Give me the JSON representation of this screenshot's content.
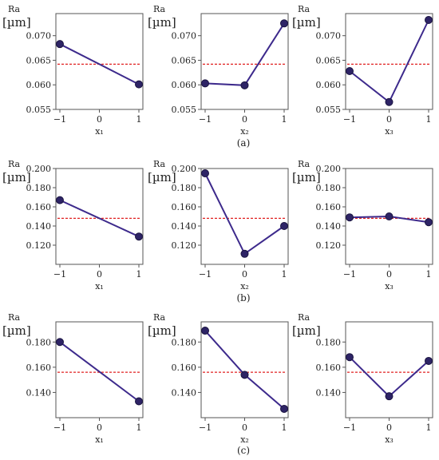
{
  "chart_data": [
    {
      "type": "line",
      "group": 0,
      "ylabel": "Ra",
      "yunit": "[µm]",
      "xlabel": "x₁",
      "x": [
        -1,
        1
      ],
      "y": [
        0.0683,
        0.0601
      ],
      "mean": 0.0642,
      "ylim": [
        0.055,
        0.0745
      ],
      "yticks": [
        0.055,
        0.06,
        0.065,
        0.07
      ],
      "ytick_labels": [
        "0.055",
        "0.060",
        "0.065",
        "0.070"
      ],
      "xticks": [
        -1,
        0,
        1
      ],
      "xtick_labels": [
        "−1",
        "0",
        "1"
      ]
    },
    {
      "type": "line",
      "group": 0,
      "ylabel": "Ra",
      "yunit": "[µm]",
      "xlabel": "x₂",
      "x": [
        -1,
        0,
        1
      ],
      "y": [
        0.0603,
        0.0599,
        0.0725
      ],
      "mean": 0.0642,
      "ylim": [
        0.055,
        0.0745
      ],
      "yticks": [
        0.055,
        0.06,
        0.065,
        0.07
      ],
      "ytick_labels": [
        "0.055",
        "0.060",
        "0.065",
        "0.070"
      ],
      "xticks": [
        -1,
        0,
        1
      ],
      "xtick_labels": [
        "−1",
        "0",
        "1"
      ]
    },
    {
      "type": "line",
      "group": 0,
      "ylabel": "Ra",
      "yunit": "[µm]",
      "xlabel": "x₃",
      "x": [
        -1,
        0,
        1
      ],
      "y": [
        0.0628,
        0.0565,
        0.0732
      ],
      "mean": 0.0642,
      "ylim": [
        0.055,
        0.0745
      ],
      "yticks": [
        0.055,
        0.06,
        0.065,
        0.07
      ],
      "ytick_labels": [
        "0.055",
        "0.060",
        "0.065",
        "0.070"
      ],
      "xticks": [
        -1,
        0,
        1
      ],
      "xtick_labels": [
        "−1",
        "0",
        "1"
      ]
    },
    {
      "type": "line",
      "group": 1,
      "ylabel": "Ra",
      "yunit": "[µm]",
      "xlabel": "x₁",
      "x": [
        -1,
        1
      ],
      "y": [
        0.167,
        0.129
      ],
      "mean": 0.148,
      "ylim": [
        0.1,
        0.2
      ],
      "yticks": [
        0.12,
        0.14,
        0.16,
        0.18,
        0.2
      ],
      "ytick_labels": [
        "0.120",
        "0.140",
        "0.160",
        "0.180",
        "0.200"
      ],
      "xticks": [
        -1,
        0,
        1
      ],
      "xtick_labels": [
        "−1",
        "0",
        "1"
      ]
    },
    {
      "type": "line",
      "group": 1,
      "ylabel": "Ra",
      "yunit": "[µm]",
      "xlabel": "x₂",
      "x": [
        -1,
        0,
        1
      ],
      "y": [
        0.195,
        0.111,
        0.14
      ],
      "mean": 0.148,
      "ylim": [
        0.1,
        0.2
      ],
      "yticks": [
        0.12,
        0.14,
        0.16,
        0.18,
        0.2
      ],
      "ytick_labels": [
        "0.120",
        "0.140",
        "0.160",
        "0.180",
        "0.200"
      ],
      "xticks": [
        -1,
        0,
        1
      ],
      "xtick_labels": [
        "−1",
        "0",
        "1"
      ]
    },
    {
      "type": "line",
      "group": 1,
      "ylabel": "Ra",
      "yunit": "[µm]",
      "xlabel": "x₃",
      "x": [
        -1,
        0,
        1
      ],
      "y": [
        0.149,
        0.15,
        0.144
      ],
      "mean": 0.148,
      "ylim": [
        0.1,
        0.2
      ],
      "yticks": [
        0.12,
        0.14,
        0.16,
        0.18,
        0.2
      ],
      "ytick_labels": [
        "0.120",
        "0.140",
        "0.160",
        "0.180",
        "0.200"
      ],
      "xticks": [
        -1,
        0,
        1
      ],
      "xtick_labels": [
        "−1",
        "0",
        "1"
      ]
    },
    {
      "type": "line",
      "group": 2,
      "ylabel": "Ra",
      "yunit": "[µm]",
      "xlabel": "x₁",
      "x": [
        -1,
        1
      ],
      "y": [
        0.18,
        0.133
      ],
      "mean": 0.156,
      "ylim": [
        0.12,
        0.196
      ],
      "yticks": [
        0.14,
        0.16,
        0.18
      ],
      "ytick_labels": [
        "0.140",
        "0.160",
        "0.180"
      ],
      "xticks": [
        -1,
        0,
        1
      ],
      "xtick_labels": [
        "−1",
        "0",
        "1"
      ]
    },
    {
      "type": "line",
      "group": 2,
      "ylabel": "Ra",
      "yunit": "[µm]",
      "xlabel": "x₂",
      "x": [
        -1,
        0,
        1
      ],
      "y": [
        0.189,
        0.154,
        0.127
      ],
      "mean": 0.156,
      "ylim": [
        0.12,
        0.196
      ],
      "yticks": [
        0.14,
        0.16,
        0.18
      ],
      "ytick_labels": [
        "0.140",
        "0.160",
        "0.180"
      ],
      "xticks": [
        -1,
        0,
        1
      ],
      "xtick_labels": [
        "−1",
        "0",
        "1"
      ]
    },
    {
      "type": "line",
      "group": 2,
      "ylabel": "Ra",
      "yunit": "[µm]",
      "xlabel": "x₃",
      "x": [
        -1,
        0,
        1
      ],
      "y": [
        0.168,
        0.137,
        0.165
      ],
      "mean": 0.156,
      "ylim": [
        0.12,
        0.196
      ],
      "yticks": [
        0.14,
        0.16,
        0.18
      ],
      "ytick_labels": [
        "0.140",
        "0.160",
        "0.180"
      ],
      "xticks": [
        -1,
        0,
        1
      ],
      "xtick_labels": [
        "−1",
        "0",
        "1"
      ]
    }
  ],
  "captions": [
    "(a)",
    "(b)",
    "(c)"
  ],
  "colors": {
    "series_line": "#3d2a8c",
    "marker_fill": "#2e2466",
    "mean_line": "#e02020",
    "axis": "#555555"
  }
}
